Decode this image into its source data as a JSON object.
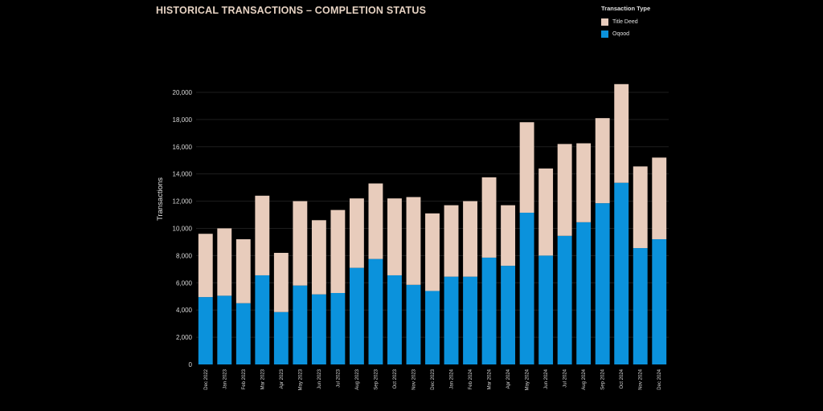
{
  "colors": {
    "title_deed": "#e8ccbc",
    "oqood": "#0b92dc",
    "background": "#000000",
    "grid": "#1e1e1e"
  },
  "chart_data": {
    "type": "bar",
    "stacked": true,
    "title": "HISTORICAL TRANSACTIONS – COMPLETION STATUS",
    "xlabel": "",
    "ylabel": "Transactions",
    "ylim": [
      0,
      21000
    ],
    "yticks": [
      "0",
      "2,000",
      "4,000",
      "6,000",
      "8,000",
      "10,000",
      "12,000",
      "14,000",
      "16,000",
      "18,000",
      "20,000"
    ],
    "ytick_values": [
      0,
      2000,
      4000,
      6000,
      8000,
      10000,
      12000,
      14000,
      16000,
      18000,
      20000
    ],
    "legend_title": "Transaction Type",
    "legend_position": "top-right",
    "grid": true,
    "categories": [
      "Dec 2022",
      "Jan 2023",
      "Feb 2023",
      "Mar 2023",
      "Apr 2023",
      "May 2023",
      "Jun 2023",
      "Jul 2023",
      "Aug 2023",
      "Sep 2023",
      "Oct 2023",
      "Nov 2023",
      "Dec 2023",
      "Jan 2024",
      "Feb 2024",
      "Mar 2024",
      "Apr 2024",
      "May 2024",
      "Jun 2024",
      "Jul 2024",
      "Aug 2024",
      "Sep 2024",
      "Oct 2024",
      "Nov 2024",
      "Dec 2024"
    ],
    "series": [
      {
        "name": "Oqood",
        "values": [
          4950,
          5050,
          4500,
          6550,
          3850,
          5800,
          5150,
          5250,
          7100,
          7750,
          6550,
          5850,
          5400,
          6450,
          6450,
          7850,
          7250,
          11150,
          8000,
          9450,
          10450,
          11850,
          13350,
          8550,
          9200
        ]
      },
      {
        "name": "Title Deed",
        "values": [
          4650,
          4950,
          4700,
          5850,
          4350,
          6200,
          5450,
          6100,
          5100,
          5550,
          5650,
          6450,
          5700,
          5250,
          5550,
          5900,
          4450,
          6650,
          6400,
          6750,
          5800,
          6250,
          7250,
          6000,
          6000
        ]
      }
    ]
  }
}
